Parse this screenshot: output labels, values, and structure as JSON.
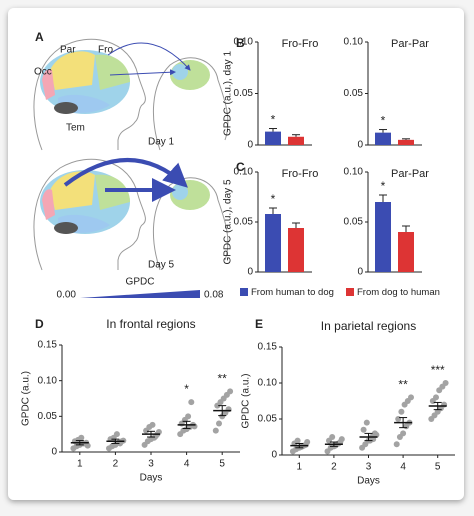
{
  "panel_labels": [
    "A",
    "B",
    "C",
    "D",
    "E"
  ],
  "diagram": {
    "regions": [
      "Par",
      "Fro",
      "Occ",
      "Tem"
    ],
    "days": [
      "Day 1",
      "Day 5"
    ],
    "scale_title": "GPDC",
    "scale_ends": [
      "0.00",
      "0.08"
    ]
  },
  "legend": [
    {
      "name": "From human to dog",
      "color": "#3b4cb2"
    },
    {
      "name": "From dog to human",
      "color": "#dd3434"
    }
  ],
  "chart_data": [
    {
      "type": "bar",
      "title": "Fro-Fro",
      "ylabel": "GPDC (a.u.), day 1",
      "values": [
        0.013,
        0.008
      ],
      "errors": [
        0.003,
        0.002
      ],
      "significance": [
        "*",
        null
      ],
      "ylim": [
        0,
        0.1
      ],
      "yticks": [
        0,
        0.05,
        {
          "value": 0.1,
          "label": "0.10"
        }
      ]
    },
    {
      "type": "bar",
      "title": "Par-Par",
      "values": [
        0.012,
        0.005
      ],
      "errors": [
        0.003,
        0.001
      ],
      "significance": [
        "*",
        null
      ],
      "ylim": [
        0,
        0.1
      ],
      "yticks": [
        0,
        0.05,
        {
          "value": 0.1,
          "label": "0.10"
        }
      ]
    },
    {
      "type": "bar",
      "title": "Fro-Fro",
      "ylabel": "GPDC (a.u.), day 5",
      "values": [
        0.058,
        0.044
      ],
      "errors": [
        0.006,
        0.005
      ],
      "significance": [
        "*",
        null
      ],
      "ylim": [
        0,
        0.1
      ],
      "yticks": [
        0,
        0.05,
        {
          "value": 0.1,
          "label": "0.10"
        }
      ]
    },
    {
      "type": "bar",
      "title": "Par-Par",
      "values": [
        0.07,
        0.04
      ],
      "errors": [
        0.007,
        0.006
      ],
      "significance": [
        "*",
        null
      ],
      "ylim": [
        0,
        0.1
      ],
      "yticks": [
        0,
        0.05,
        {
          "value": 0.1,
          "label": "0.10"
        }
      ]
    },
    {
      "type": "scatter",
      "title": "In frontal regions",
      "ylabel": "GPDC (a.u.)",
      "xlabel": "Days",
      "color": "#a3a3a3",
      "x": [
        1,
        2,
        3,
        4,
        5
      ],
      "points": [
        [
          0.005,
          0.008,
          0.01,
          0.012,
          0.013,
          0.015,
          0.017,
          0.02,
          0.012,
          0.009
        ],
        [
          0.005,
          0.008,
          0.01,
          0.013,
          0.015,
          0.018,
          0.02,
          0.025,
          0.012,
          0.016
        ],
        [
          0.01,
          0.015,
          0.018,
          0.02,
          0.025,
          0.03,
          0.035,
          0.038,
          0.022,
          0.028
        ],
        [
          0.025,
          0.03,
          0.032,
          0.035,
          0.038,
          0.04,
          0.045,
          0.05,
          0.07,
          0.036
        ],
        [
          0.03,
          0.04,
          0.05,
          0.055,
          0.06,
          0.065,
          0.07,
          0.075,
          0.08,
          0.085
        ]
      ],
      "means": [
        0.013,
        0.015,
        0.025,
        0.038,
        0.058
      ],
      "errors": [
        0.003,
        0.003,
        0.004,
        0.005,
        0.007
      ],
      "significance": [
        null,
        null,
        null,
        "*",
        "**"
      ],
      "xlim": [
        0.5,
        5.5
      ],
      "xticks": [
        1,
        2,
        3,
        4,
        5
      ],
      "ylim": [
        0,
        0.15
      ],
      "yticks": [
        0,
        0.05,
        {
          "value": 0.1,
          "label": "0.10"
        },
        0.15
      ]
    },
    {
      "type": "scatter",
      "title": "In parietal regions",
      "ylabel": "GPDC (a.u.)",
      "xlabel": "Days",
      "color": "#a3a3a3",
      "x": [
        1,
        2,
        3,
        4,
        5
      ],
      "points": [
        [
          0.005,
          0.008,
          0.01,
          0.012,
          0.014,
          0.016,
          0.02,
          0.011,
          0.013,
          0.018
        ],
        [
          0.005,
          0.01,
          0.012,
          0.015,
          0.018,
          0.02,
          0.025,
          0.013,
          0.016,
          0.022
        ],
        [
          0.01,
          0.015,
          0.02,
          0.025,
          0.03,
          0.035,
          0.045,
          0.02,
          0.022,
          0.028
        ],
        [
          0.015,
          0.025,
          0.03,
          0.04,
          0.045,
          0.05,
          0.06,
          0.07,
          0.075,
          0.08
        ],
        [
          0.05,
          0.055,
          0.06,
          0.065,
          0.07,
          0.075,
          0.08,
          0.09,
          0.095,
          0.1
        ]
      ],
      "means": [
        0.013,
        0.015,
        0.025,
        0.045,
        0.068
      ],
      "errors": [
        0.003,
        0.003,
        0.005,
        0.007,
        0.005
      ],
      "significance": [
        null,
        null,
        null,
        "**",
        "***"
      ],
      "xlim": [
        0.5,
        5.5
      ],
      "xticks": [
        1,
        2,
        3,
        4,
        5
      ],
      "ylim": [
        0,
        0.15
      ],
      "yticks": [
        0,
        0.05,
        {
          "value": 0.1,
          "label": "0.10"
        },
        0.15
      ]
    }
  ]
}
